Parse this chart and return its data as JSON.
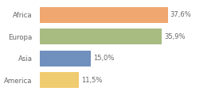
{
  "categories": [
    "Africa",
    "Europa",
    "Asia",
    "America"
  ],
  "values": [
    37.6,
    35.9,
    15.0,
    11.5
  ],
  "labels": [
    "37,6%",
    "35,9%",
    "15,0%",
    "11,5%"
  ],
  "bar_colors": [
    "#f0a870",
    "#a8bc82",
    "#7090be",
    "#f0cc70"
  ],
  "background_color": "#ffffff",
  "xlim": [
    0,
    46
  ],
  "bar_height": 0.72,
  "label_fontsize": 6.0,
  "tick_fontsize": 6.2,
  "label_color": "#666666",
  "tick_color": "#666666"
}
